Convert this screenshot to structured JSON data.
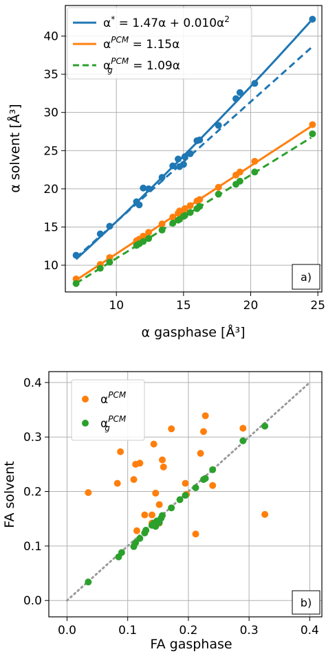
{
  "colors": {
    "blue": "#1f77b4",
    "orange": "#ff7f0e",
    "green": "#2ca02c",
    "identity_line": "#999999",
    "grid": "#b0b0b0"
  },
  "chart_data": [
    {
      "panel": "a)",
      "type": "scatter",
      "xlabel": "α gasphase [Å³]",
      "ylabel": "α solvent [Å³]",
      "xlim": [
        6.2,
        25.3
      ],
      "ylim": [
        6.5,
        44
      ],
      "xticks": [
        10,
        15,
        20,
        25
      ],
      "yticks": [
        10,
        15,
        20,
        25,
        30,
        35,
        40
      ],
      "grid": true,
      "legend_position": "top-left",
      "legend": [
        {
          "label": "α* = 1.47α + 0.010α²",
          "color": "#1f77b4",
          "style": "solid"
        },
        {
          "label": "α^PCM = 1.15α",
          "color": "#ff7f0e",
          "style": "solid"
        },
        {
          "label": "α_g^PCM = 1.09α",
          "color": "#2ca02c",
          "style": "dashed"
        }
      ],
      "fits": [
        {
          "series": "star",
          "kind": "quadratic",
          "a": 1.47,
          "b": 0.01,
          "color": "#1f77b4",
          "style": "solid"
        },
        {
          "series": "star_dashed",
          "kind": "linear",
          "slope": 1.57,
          "color": "#1f77b4",
          "style": "dashed"
        },
        {
          "series": "pcm",
          "kind": "linear",
          "slope": 1.15,
          "color": "#ff7f0e",
          "style": "solid"
        },
        {
          "series": "pcm_g",
          "kind": "linear",
          "slope": 1.09,
          "color": "#2ca02c",
          "style": "dashed"
        }
      ],
      "series": [
        {
          "name": "α*",
          "color": "#1f77b4",
          "points": [
            [
              7.0,
              11.3
            ],
            [
              8.8,
              14.1
            ],
            [
              9.5,
              15.1
            ],
            [
              11.5,
              18.3
            ],
            [
              11.7,
              17.9
            ],
            [
              12.0,
              20.1
            ],
            [
              12.4,
              20.0
            ],
            [
              13.4,
              21.5
            ],
            [
              14.2,
              23.0
            ],
            [
              14.6,
              23.9
            ],
            [
              14.7,
              22.9
            ],
            [
              15.0,
              23.2
            ],
            [
              15.1,
              24.2
            ],
            [
              15.5,
              24.6
            ],
            [
              16.0,
              26.3
            ],
            [
              16.2,
              26.4
            ],
            [
              17.6,
              28.3
            ],
            [
              18.9,
              31.8
            ],
            [
              19.2,
              32.6
            ],
            [
              20.3,
              33.8
            ],
            [
              24.6,
              42.2
            ]
          ]
        },
        {
          "name": "α^PCM",
          "color": "#ff7f0e",
          "points": [
            [
              7.0,
              8.2
            ],
            [
              8.8,
              10.1
            ],
            [
              9.5,
              11.0
            ],
            [
              11.5,
              13.2
            ],
            [
              11.7,
              13.4
            ],
            [
              12.0,
              13.8
            ],
            [
              12.4,
              14.3
            ],
            [
              13.4,
              15.4
            ],
            [
              14.2,
              16.3
            ],
            [
              14.6,
              16.8
            ],
            [
              14.7,
              17.1
            ],
            [
              15.0,
              16.9
            ],
            [
              15.1,
              17.4
            ],
            [
              15.5,
              17.8
            ],
            [
              16.0,
              18.4
            ],
            [
              16.2,
              18.6
            ],
            [
              17.6,
              20.2
            ],
            [
              18.9,
              21.8
            ],
            [
              19.2,
              22.2
            ],
            [
              20.3,
              23.6
            ],
            [
              24.6,
              28.4
            ]
          ]
        },
        {
          "name": "α_g^PCM",
          "color": "#2ca02c",
          "points": [
            [
              7.0,
              7.6
            ],
            [
              8.8,
              9.6
            ],
            [
              9.5,
              10.4
            ],
            [
              11.5,
              12.6
            ],
            [
              11.7,
              12.8
            ],
            [
              12.0,
              13.1
            ],
            [
              12.4,
              13.5
            ],
            [
              13.4,
              14.6
            ],
            [
              14.2,
              15.5
            ],
            [
              14.6,
              15.9
            ],
            [
              14.7,
              16.0
            ],
            [
              15.0,
              16.4
            ],
            [
              15.1,
              16.5
            ],
            [
              15.5,
              16.9
            ],
            [
              16.0,
              17.4
            ],
            [
              16.2,
              17.7
            ],
            [
              17.6,
              19.3
            ],
            [
              18.9,
              20.6
            ],
            [
              19.2,
              21.0
            ],
            [
              20.3,
              22.2
            ],
            [
              24.6,
              27.2
            ]
          ]
        }
      ]
    },
    {
      "panel": "b)",
      "type": "scatter",
      "xlabel": "FA gasphase",
      "ylabel": "FA solvent",
      "xlim": [
        -0.03,
        0.42
      ],
      "ylim": [
        -0.03,
        0.42
      ],
      "xticks": [
        0.0,
        0.1,
        0.2,
        0.3,
        0.4
      ],
      "yticks": [
        0.0,
        0.1,
        0.2,
        0.3,
        0.4
      ],
      "tick_labels": [
        "0.0",
        "0.1",
        "0.2",
        "0.3",
        "0.4"
      ],
      "grid": true,
      "legend_position": "top-left",
      "legend": [
        {
          "label": "α^PCM",
          "color": "#ff7f0e",
          "style": "marker"
        },
        {
          "label": "α_g^PCM",
          "color": "#2ca02c",
          "style": "marker"
        }
      ],
      "identity_line": {
        "from": 0.0,
        "to": 0.4,
        "style": "dotted",
        "color": "#999999"
      },
      "series": [
        {
          "name": "α^PCM",
          "color": "#ff7f0e",
          "points": [
            [
              0.035,
              0.198
            ],
            [
              0.083,
              0.215
            ],
            [
              0.088,
              0.273
            ],
            [
              0.11,
              0.222
            ],
            [
              0.113,
              0.25
            ],
            [
              0.12,
              0.252
            ],
            [
              0.128,
              0.157
            ],
            [
              0.143,
              0.287
            ],
            [
              0.146,
              0.197
            ],
            [
              0.152,
              0.176
            ],
            [
              0.157,
              0.258
            ],
            [
              0.159,
              0.245
            ],
            [
              0.172,
              0.315
            ],
            [
              0.195,
              0.215
            ],
            [
              0.212,
              0.122
            ],
            [
              0.22,
              0.27
            ],
            [
              0.225,
              0.31
            ],
            [
              0.228,
              0.339
            ],
            [
              0.24,
              0.211
            ],
            [
              0.29,
              0.316
            ],
            [
              0.326,
              0.158
            ],
            [
              0.115,
              0.128
            ],
            [
              0.14,
              0.157
            ],
            [
              0.152,
              0.142
            ],
            [
              0.14,
              0.142
            ],
            [
              0.197,
              0.195
            ]
          ]
        },
        {
          "name": "α_g^PCM",
          "color": "#2ca02c",
          "points": [
            [
              0.035,
              0.034
            ],
            [
              0.085,
              0.08
            ],
            [
              0.09,
              0.088
            ],
            [
              0.11,
              0.099
            ],
            [
              0.113,
              0.106
            ],
            [
              0.12,
              0.114
            ],
            [
              0.128,
              0.124
            ],
            [
              0.13,
              0.129
            ],
            [
              0.14,
              0.138
            ],
            [
              0.143,
              0.142
            ],
            [
              0.146,
              0.136
            ],
            [
              0.148,
              0.146
            ],
            [
              0.152,
              0.143
            ],
            [
              0.155,
              0.151
            ],
            [
              0.157,
              0.156
            ],
            [
              0.172,
              0.17
            ],
            [
              0.186,
              0.185
            ],
            [
              0.195,
              0.193
            ],
            [
              0.212,
              0.207
            ],
            [
              0.225,
              0.222
            ],
            [
              0.228,
              0.224
            ],
            [
              0.24,
              0.24
            ],
            [
              0.29,
              0.293
            ],
            [
              0.326,
              0.32
            ]
          ]
        }
      ]
    }
  ]
}
